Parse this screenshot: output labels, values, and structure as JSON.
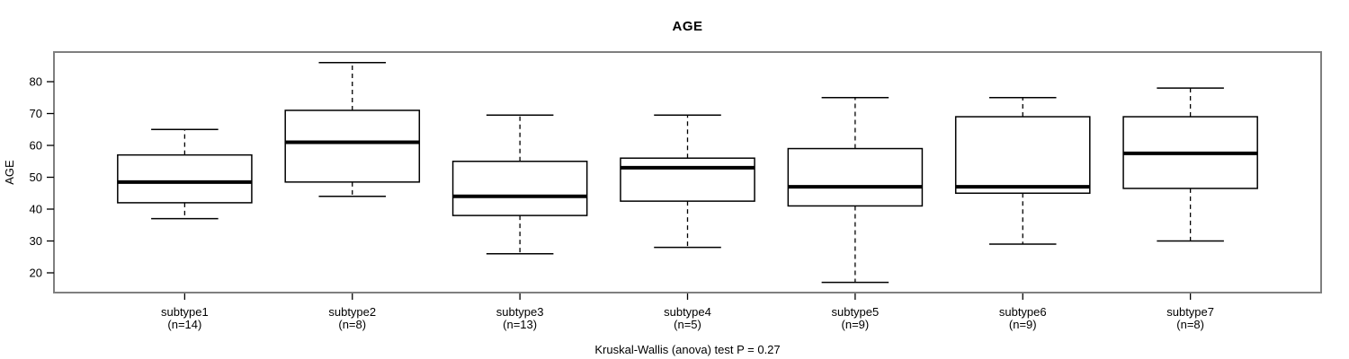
{
  "chart_data": {
    "type": "boxplot",
    "title": "AGE",
    "ylabel": "AGE",
    "xlabel": "",
    "footnote": "Kruskal-Wallis (anova) test P = 0.27",
    "yticks": [
      20,
      30,
      40,
      50,
      60,
      70,
      80
    ],
    "ylim": [
      13.8,
      89.3
    ],
    "grid": false,
    "legend": "none",
    "colors": {
      "frame": "#7f7f7f",
      "box_stroke": "#000000",
      "median": "#000000",
      "whisker": "#000000",
      "background": "#ffffff"
    },
    "groups": [
      {
        "label": "subtype1",
        "sublabel": "(n=14)",
        "n": 14,
        "whisker_low": 37,
        "q1": 42,
        "median": 48.5,
        "q3": 57,
        "whisker_high": 65
      },
      {
        "label": "subtype2",
        "sublabel": "(n=8)",
        "n": 8,
        "whisker_low": 44,
        "q1": 48.5,
        "median": 61,
        "q3": 71,
        "whisker_high": 86
      },
      {
        "label": "subtype3",
        "sublabel": "(n=13)",
        "n": 13,
        "whisker_low": 26,
        "q1": 38,
        "median": 44,
        "q3": 55,
        "whisker_high": 69.5
      },
      {
        "label": "subtype4",
        "sublabel": "(n=5)",
        "n": 5,
        "whisker_low": 28,
        "q1": 42.5,
        "median": 53,
        "q3": 56,
        "whisker_high": 69.5
      },
      {
        "label": "subtype5",
        "sublabel": "(n=9)",
        "n": 9,
        "whisker_low": 17,
        "q1": 41,
        "median": 47,
        "q3": 59,
        "whisker_high": 75
      },
      {
        "label": "subtype6",
        "sublabel": "(n=9)",
        "n": 9,
        "whisker_low": 29,
        "q1": 45,
        "median": 47,
        "q3": 69,
        "whisker_high": 75
      },
      {
        "label": "subtype7",
        "sublabel": "(n=8)",
        "n": 8,
        "whisker_low": 30,
        "q1": 46.5,
        "median": 57.5,
        "q3": 69,
        "whisker_high": 78
      }
    ]
  }
}
